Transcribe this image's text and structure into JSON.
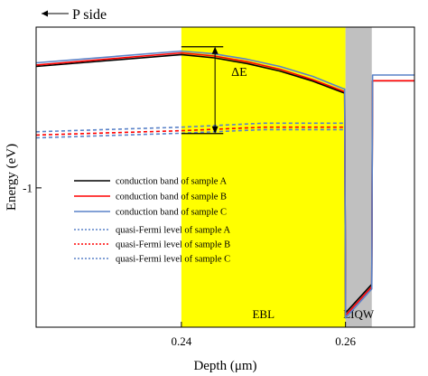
{
  "chart_data": {
    "type": "line",
    "xlabel": "Depth (μm)",
    "ylabel": "Energy (eV)",
    "xlim": [
      0.2223,
      0.2684
    ],
    "ylim": [
      -1.39,
      -0.55
    ],
    "x_ticks": [
      {
        "value": 0.24,
        "label": "0.24"
      },
      {
        "value": 0.26,
        "label": "0.26"
      }
    ],
    "y_ticks": [
      {
        "value": -1,
        "label": "-1"
      }
    ],
    "grid": false,
    "legend_position": "lower-left",
    "regions": [
      {
        "name": "EBL",
        "x_start": 0.24,
        "x_end": 0.26,
        "color": "#ffff00"
      },
      {
        "name": "LIQW",
        "x_start": 0.26,
        "x_end": 0.2632,
        "color": "#c0c0c0"
      }
    ],
    "annotations": {
      "direction_label": "P side",
      "delta_label": "ΔE",
      "delta_x": 0.2441,
      "delta_y_top": -0.605,
      "delta_y_bottom": -0.848,
      "delta_bar_x": [
        0.24,
        0.2451
      ]
    },
    "series": [
      {
        "name": "conduction band of sample A",
        "kind": "conduction",
        "color": "#000000",
        "dash": false,
        "x": [
          0.2223,
          0.24,
          0.244,
          0.248,
          0.252,
          0.256,
          0.2598,
          0.2599,
          0.26,
          0.2632,
          0.2633,
          0.2684
        ],
        "y": [
          -0.66,
          -0.627,
          -0.636,
          -0.652,
          -0.673,
          -0.701,
          -0.734,
          -0.734,
          -1.35,
          -1.27,
          -0.7,
          -0.7
        ]
      },
      {
        "name": "conduction band of sample B",
        "kind": "conduction",
        "color": "#ff0000",
        "dash": false,
        "x": [
          0.2223,
          0.24,
          0.244,
          0.248,
          0.252,
          0.256,
          0.2598,
          0.2599,
          0.26,
          0.2632,
          0.2633,
          0.2684
        ],
        "y": [
          -0.656,
          -0.622,
          -0.631,
          -0.647,
          -0.668,
          -0.697,
          -0.73,
          -0.73,
          -1.357,
          -1.277,
          -0.7,
          -0.7
        ]
      },
      {
        "name": "conduction band of sample C",
        "kind": "conduction",
        "color": "#5a82c8",
        "dash": false,
        "x": [
          0.2223,
          0.24,
          0.244,
          0.248,
          0.252,
          0.256,
          0.2598,
          0.2599,
          0.26,
          0.2632,
          0.2633,
          0.2684
        ],
        "y": [
          -0.65,
          -0.617,
          -0.625,
          -0.64,
          -0.66,
          -0.688,
          -0.723,
          -0.723,
          -1.364,
          -1.283,
          -0.684,
          -0.684
        ]
      },
      {
        "name": "quasi-Fermi level of sample A",
        "kind": "fermi",
        "color": "#5a82c8",
        "dash": true,
        "x": [
          0.2223,
          0.24,
          0.25,
          0.2598
        ],
        "y": [
          -0.86,
          -0.847,
          -0.837,
          -0.837
        ]
      },
      {
        "name": "quasi-Fermi level of sample B",
        "kind": "fermi",
        "color": "#ff0000",
        "dash": true,
        "x": [
          0.2223,
          0.24,
          0.25,
          0.2598
        ],
        "y": [
          -0.852,
          -0.84,
          -0.83,
          -0.83
        ]
      },
      {
        "name": "quasi-Fermi level of sample C",
        "kind": "fermi",
        "color": "#5a82c8",
        "dash": true,
        "x": [
          0.2223,
          0.24,
          0.25,
          0.2598
        ],
        "y": [
          -0.843,
          -0.83,
          -0.819,
          -0.819
        ]
      }
    ]
  }
}
